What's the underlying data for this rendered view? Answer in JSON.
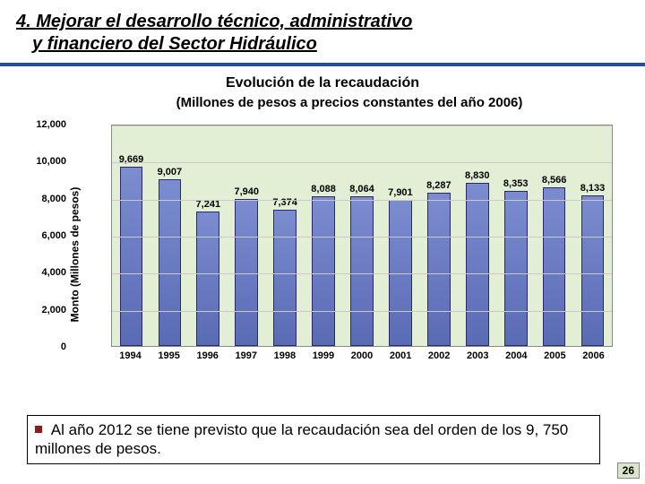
{
  "heading": {
    "line1": "4. Mejorar el desarrollo técnico, administrativo",
    "line2": "y financiero del Sector Hidráulico"
  },
  "rule_color": "#1f4e9c",
  "chart": {
    "type": "bar",
    "title": "Evolución de la recaudación",
    "subtitle": "(Millones de pesos a precios constantes del año 2006)",
    "ylabel": "Monto (Millones de pesos)",
    "categories": [
      "1994",
      "1995",
      "1996",
      "1997",
      "1998",
      "1999",
      "2000",
      "2001",
      "2002",
      "2003",
      "2004",
      "2005",
      "2006"
    ],
    "values": [
      9669,
      9007,
      7241,
      7940,
      7374,
      8088,
      8064,
      7901,
      8287,
      8830,
      8353,
      8566,
      8133
    ],
    "value_labels": [
      "9,669",
      "9,007",
      "7,241",
      "7,940",
      "7,374",
      "8,088",
      "8,064",
      "7,901",
      "8,287",
      "8,830",
      "8,353",
      "8,566",
      "8,133"
    ],
    "ylim": [
      0,
      12000
    ],
    "yticks": [
      0,
      2000,
      4000,
      6000,
      8000,
      10000,
      12000
    ],
    "ytick_labels": [
      "0",
      "2,000",
      "4,000",
      "6,000",
      "8,000",
      "10,000",
      "12,000"
    ],
    "bar_fill": "#7b8ccf",
    "bar_border": "#2a2a6a",
    "plot_background": "#e2efd5",
    "grid_color": "#c9c9c9",
    "label_fontsize": 11,
    "title_fontsize": 16,
    "bar_width": 0.6
  },
  "footer": {
    "bullet_color": "#8b1a1a",
    "text": "Al año 2012 se tiene previsto que la recaudación sea del orden de los 9, 750 millones de pesos."
  },
  "page_number": "26"
}
